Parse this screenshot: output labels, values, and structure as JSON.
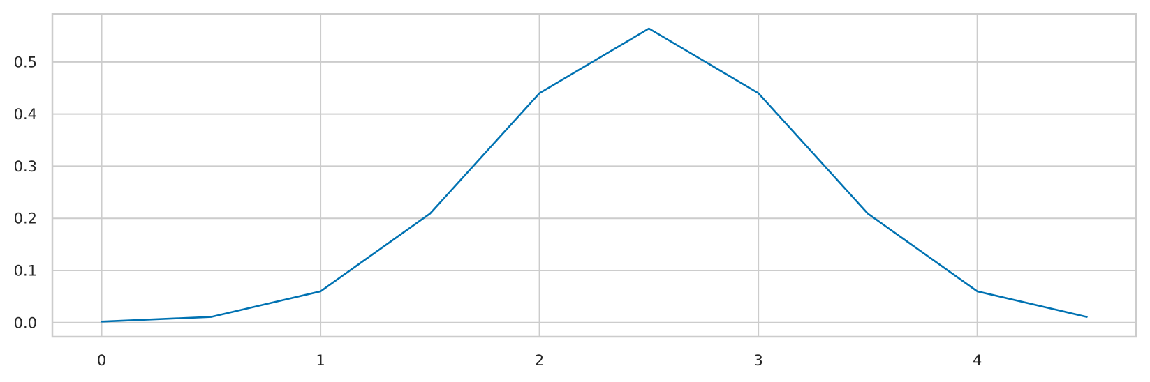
{
  "chart_data": {
    "type": "line",
    "title": "",
    "xlabel": "",
    "ylabel": "",
    "x": [
      0,
      0.5,
      1,
      1.5,
      2,
      2.5,
      3,
      3.5,
      4,
      4.5
    ],
    "series": [
      {
        "values": [
          0.002,
          0.011,
          0.06,
          0.209,
          0.44,
          0.564,
          0.44,
          0.209,
          0.06,
          0.011
        ]
      }
    ],
    "xlim": [
      -0.225,
      4.725
    ],
    "ylim": [
      -0.027,
      0.592
    ],
    "xticks": [
      0,
      1,
      2,
      3,
      4
    ],
    "xtick_labels": [
      "0",
      "1",
      "2",
      "3",
      "4"
    ],
    "yticks": [
      0.0,
      0.1,
      0.2,
      0.3,
      0.4,
      0.5
    ],
    "ytick_labels": [
      "0.0",
      "0.1",
      "0.2",
      "0.3",
      "0.4",
      "0.5"
    ],
    "grid": true,
    "colors": {
      "line": "#0072B2",
      "grid": "#CCCCCC",
      "axes_edge": "#CCCCCC",
      "tick_text": "#262626",
      "background": "#FFFFFF"
    }
  }
}
